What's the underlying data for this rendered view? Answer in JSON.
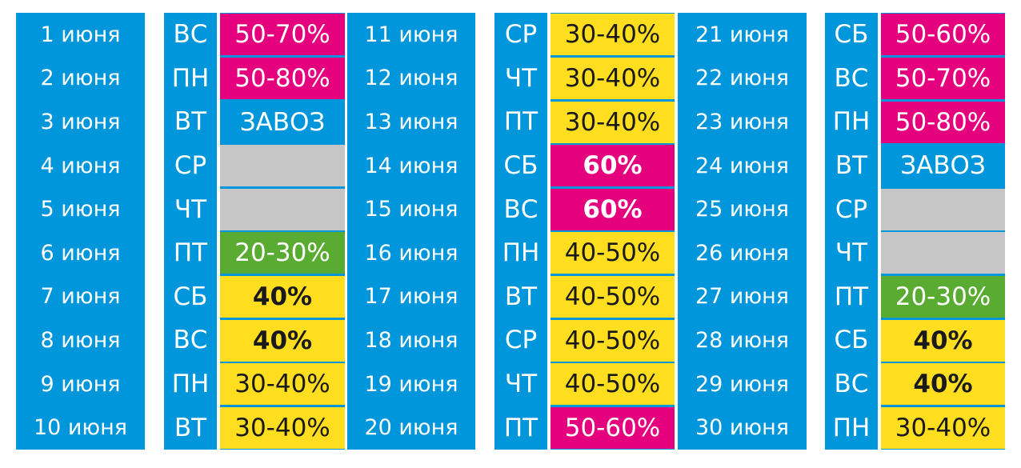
{
  "colors": {
    "blue": "#0096dc",
    "magenta": "#e5007e",
    "yellow": "#ffdd1f",
    "green": "#5aab32",
    "gray": "#c6c6c6"
  },
  "groups": [
    {
      "rows": [
        {
          "date": "1 июня",
          "day": "ВС",
          "discount": "50-70%",
          "style": "magenta",
          "bold": false
        },
        {
          "date": "2 июня",
          "day": "ПН",
          "discount": "50-80%",
          "style": "magenta",
          "bold": false
        },
        {
          "date": "3 июня",
          "day": "ВТ",
          "discount": "ЗАВОЗ",
          "style": "blue",
          "bold": false
        },
        {
          "date": "4 июня",
          "day": "СР",
          "discount": "",
          "style": "gray",
          "bold": false
        },
        {
          "date": "5 июня",
          "day": "ЧТ",
          "discount": "",
          "style": "gray",
          "bold": false
        },
        {
          "date": "6 июня",
          "day": "ПТ",
          "discount": "20-30%",
          "style": "green",
          "bold": false
        },
        {
          "date": "7 июня",
          "day": "СБ",
          "discount": "40%",
          "style": "yellow",
          "bold": true
        },
        {
          "date": "8 июня",
          "day": "ВС",
          "discount": "40%",
          "style": "yellow",
          "bold": true
        },
        {
          "date": "9 июня",
          "day": "ПН",
          "discount": "30-40%",
          "style": "yellow",
          "bold": false
        },
        {
          "date": "10 июня",
          "day": "ВТ",
          "discount": "30-40%",
          "style": "yellow",
          "bold": false
        }
      ]
    },
    {
      "rows": [
        {
          "date": "11 июня",
          "day": "СР",
          "discount": "30-40%",
          "style": "yellow",
          "bold": false
        },
        {
          "date": "12 июня",
          "day": "ЧТ",
          "discount": "30-40%",
          "style": "yellow",
          "bold": false
        },
        {
          "date": "13 июня",
          "day": "ПТ",
          "discount": "30-40%",
          "style": "yellow",
          "bold": false
        },
        {
          "date": "14 июня",
          "day": "СБ",
          "discount": "60%",
          "style": "magenta",
          "bold": true
        },
        {
          "date": "15 июня",
          "day": "ВС",
          "discount": "60%",
          "style": "magenta",
          "bold": true
        },
        {
          "date": "16 июня",
          "day": "ПН",
          "discount": "40-50%",
          "style": "yellow",
          "bold": false
        },
        {
          "date": "17 июня",
          "day": "ВТ",
          "discount": "40-50%",
          "style": "yellow",
          "bold": false
        },
        {
          "date": "18 июня",
          "day": "СР",
          "discount": "40-50%",
          "style": "yellow",
          "bold": false
        },
        {
          "date": "19 июня",
          "day": "ЧТ",
          "discount": "40-50%",
          "style": "yellow",
          "bold": false
        },
        {
          "date": "20 июня",
          "day": "ПТ",
          "discount": "50-60%",
          "style": "magenta",
          "bold": false
        }
      ]
    },
    {
      "rows": [
        {
          "date": "21 июня",
          "day": "СБ",
          "discount": "50-60%",
          "style": "magenta",
          "bold": false
        },
        {
          "date": "22 июня",
          "day": "ВС",
          "discount": "50-70%",
          "style": "magenta",
          "bold": false
        },
        {
          "date": "23 июня",
          "day": "ПН",
          "discount": "50-80%",
          "style": "magenta",
          "bold": false
        },
        {
          "date": "24 июня",
          "day": "ВТ",
          "discount": "ЗАВОЗ",
          "style": "blue",
          "bold": false
        },
        {
          "date": "25 июня",
          "day": "СР",
          "discount": "",
          "style": "gray",
          "bold": false
        },
        {
          "date": "26 июня",
          "day": "ЧТ",
          "discount": "",
          "style": "gray",
          "bold": false
        },
        {
          "date": "27 июня",
          "day": "ПТ",
          "discount": "20-30%",
          "style": "green",
          "bold": false
        },
        {
          "date": "28 июня",
          "day": "СБ",
          "discount": "40%",
          "style": "yellow",
          "bold": true
        },
        {
          "date": "29 июня",
          "day": "ВС",
          "discount": "40%",
          "style": "yellow",
          "bold": true
        },
        {
          "date": "30 июня",
          "day": "ПН",
          "discount": "30-40%",
          "style": "yellow",
          "bold": false
        }
      ]
    }
  ]
}
